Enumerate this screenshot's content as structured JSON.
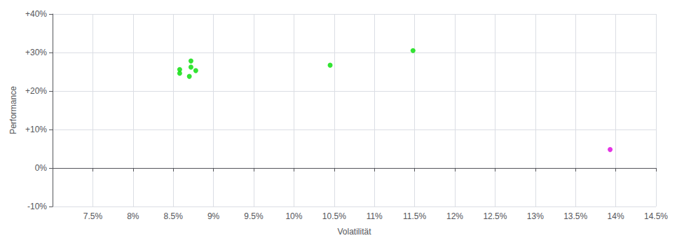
{
  "chart_data": {
    "type": "scatter",
    "xlabel": "Volatilität",
    "ylabel": "Performance",
    "xlim": [
      0.07,
      0.145
    ],
    "ylim": [
      -0.1,
      0.4
    ],
    "xticks": [
      {
        "value": 0.075,
        "label": "7.5%"
      },
      {
        "value": 0.08,
        "label": "8%"
      },
      {
        "value": 0.085,
        "label": "8.5%"
      },
      {
        "value": 0.09,
        "label": "9%"
      },
      {
        "value": 0.095,
        "label": "9.5%"
      },
      {
        "value": 0.1,
        "label": "10%"
      },
      {
        "value": 0.105,
        "label": "10.5%"
      },
      {
        "value": 0.11,
        "label": "11%"
      },
      {
        "value": 0.115,
        "label": "11.5%"
      },
      {
        "value": 0.12,
        "label": "12%"
      },
      {
        "value": 0.125,
        "label": "12.5%"
      },
      {
        "value": 0.13,
        "label": "13%"
      },
      {
        "value": 0.135,
        "label": "13.5%"
      },
      {
        "value": 0.14,
        "label": "14%"
      },
      {
        "value": 0.145,
        "label": "14.5%"
      }
    ],
    "yticks": [
      {
        "value": -0.1,
        "label": "-10%"
      },
      {
        "value": 0.0,
        "label": "0%"
      },
      {
        "value": 0.1,
        "label": "+10%"
      },
      {
        "value": 0.2,
        "label": "+20%"
      },
      {
        "value": 0.3,
        "label": "+30%"
      },
      {
        "value": 0.4,
        "label": "+40%"
      }
    ],
    "grid": true,
    "series": [
      {
        "color": "#00dd00",
        "x": [
          0.0872,
          0.0872,
          0.0858,
          0.0878,
          0.0858,
          0.087,
          0.1045,
          0.1148
        ],
        "values": [
          0.278,
          0.262,
          0.256,
          0.253,
          0.246,
          0.238,
          0.267,
          0.305
        ]
      },
      {
        "color": "#dd00dd",
        "x": [
          0.1393
        ],
        "values": [
          0.048
        ]
      }
    ]
  }
}
